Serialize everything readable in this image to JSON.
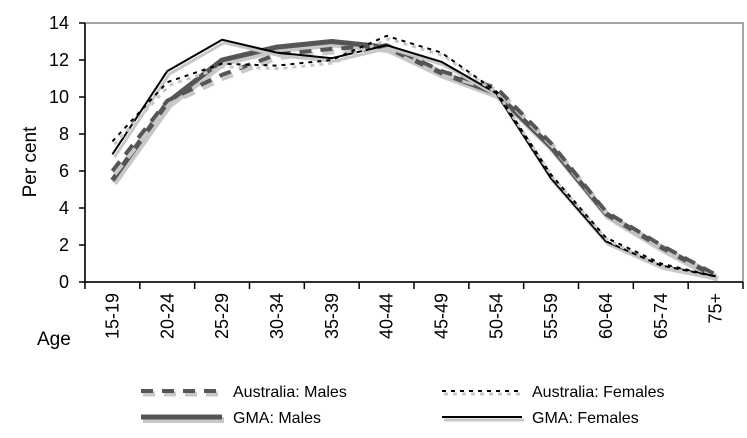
{
  "chart_data": {
    "type": "line",
    "ylabel": "Per cent",
    "xlabel": "Age",
    "ylim": [
      0,
      14
    ],
    "yticks": [
      0,
      2,
      4,
      6,
      8,
      10,
      12,
      14
    ],
    "grid": false,
    "legend_position": "bottom",
    "categories": [
      "15-19",
      "20-24",
      "25-29",
      "30-34",
      "35-39",
      "40-44",
      "45-49",
      "50-54",
      "55-59",
      "60-64",
      "65-74",
      "75+"
    ],
    "series": [
      {
        "name": "Australia: Males",
        "values": [
          6.0,
          9.8,
          11.2,
          12.3,
          12.6,
          12.8,
          11.4,
          10.5,
          7.5,
          3.8,
          2.0,
          0.4
        ]
      },
      {
        "name": "Australia: Females",
        "values": [
          7.6,
          10.8,
          11.8,
          11.7,
          12.0,
          13.3,
          12.4,
          10.3,
          5.8,
          2.4,
          1.0,
          0.3
        ]
      },
      {
        "name": "GMA: Males",
        "values": [
          5.5,
          9.7,
          12.0,
          12.7,
          13.0,
          12.7,
          11.3,
          10.2,
          7.3,
          3.7,
          1.9,
          0.3
        ]
      },
      {
        "name": "GMA: Females",
        "values": [
          6.9,
          11.4,
          13.1,
          12.4,
          12.1,
          12.8,
          11.9,
          10.2,
          5.6,
          2.2,
          0.9,
          0.3
        ]
      }
    ],
    "styles": {
      "Australia: Males": {
        "color": "#555555"
      },
      "Australia: Females": {
        "color": "#000000"
      },
      "GMA: Males": {
        "color": "#555555"
      },
      "GMA: Females": {
        "color": "#000000"
      }
    }
  }
}
